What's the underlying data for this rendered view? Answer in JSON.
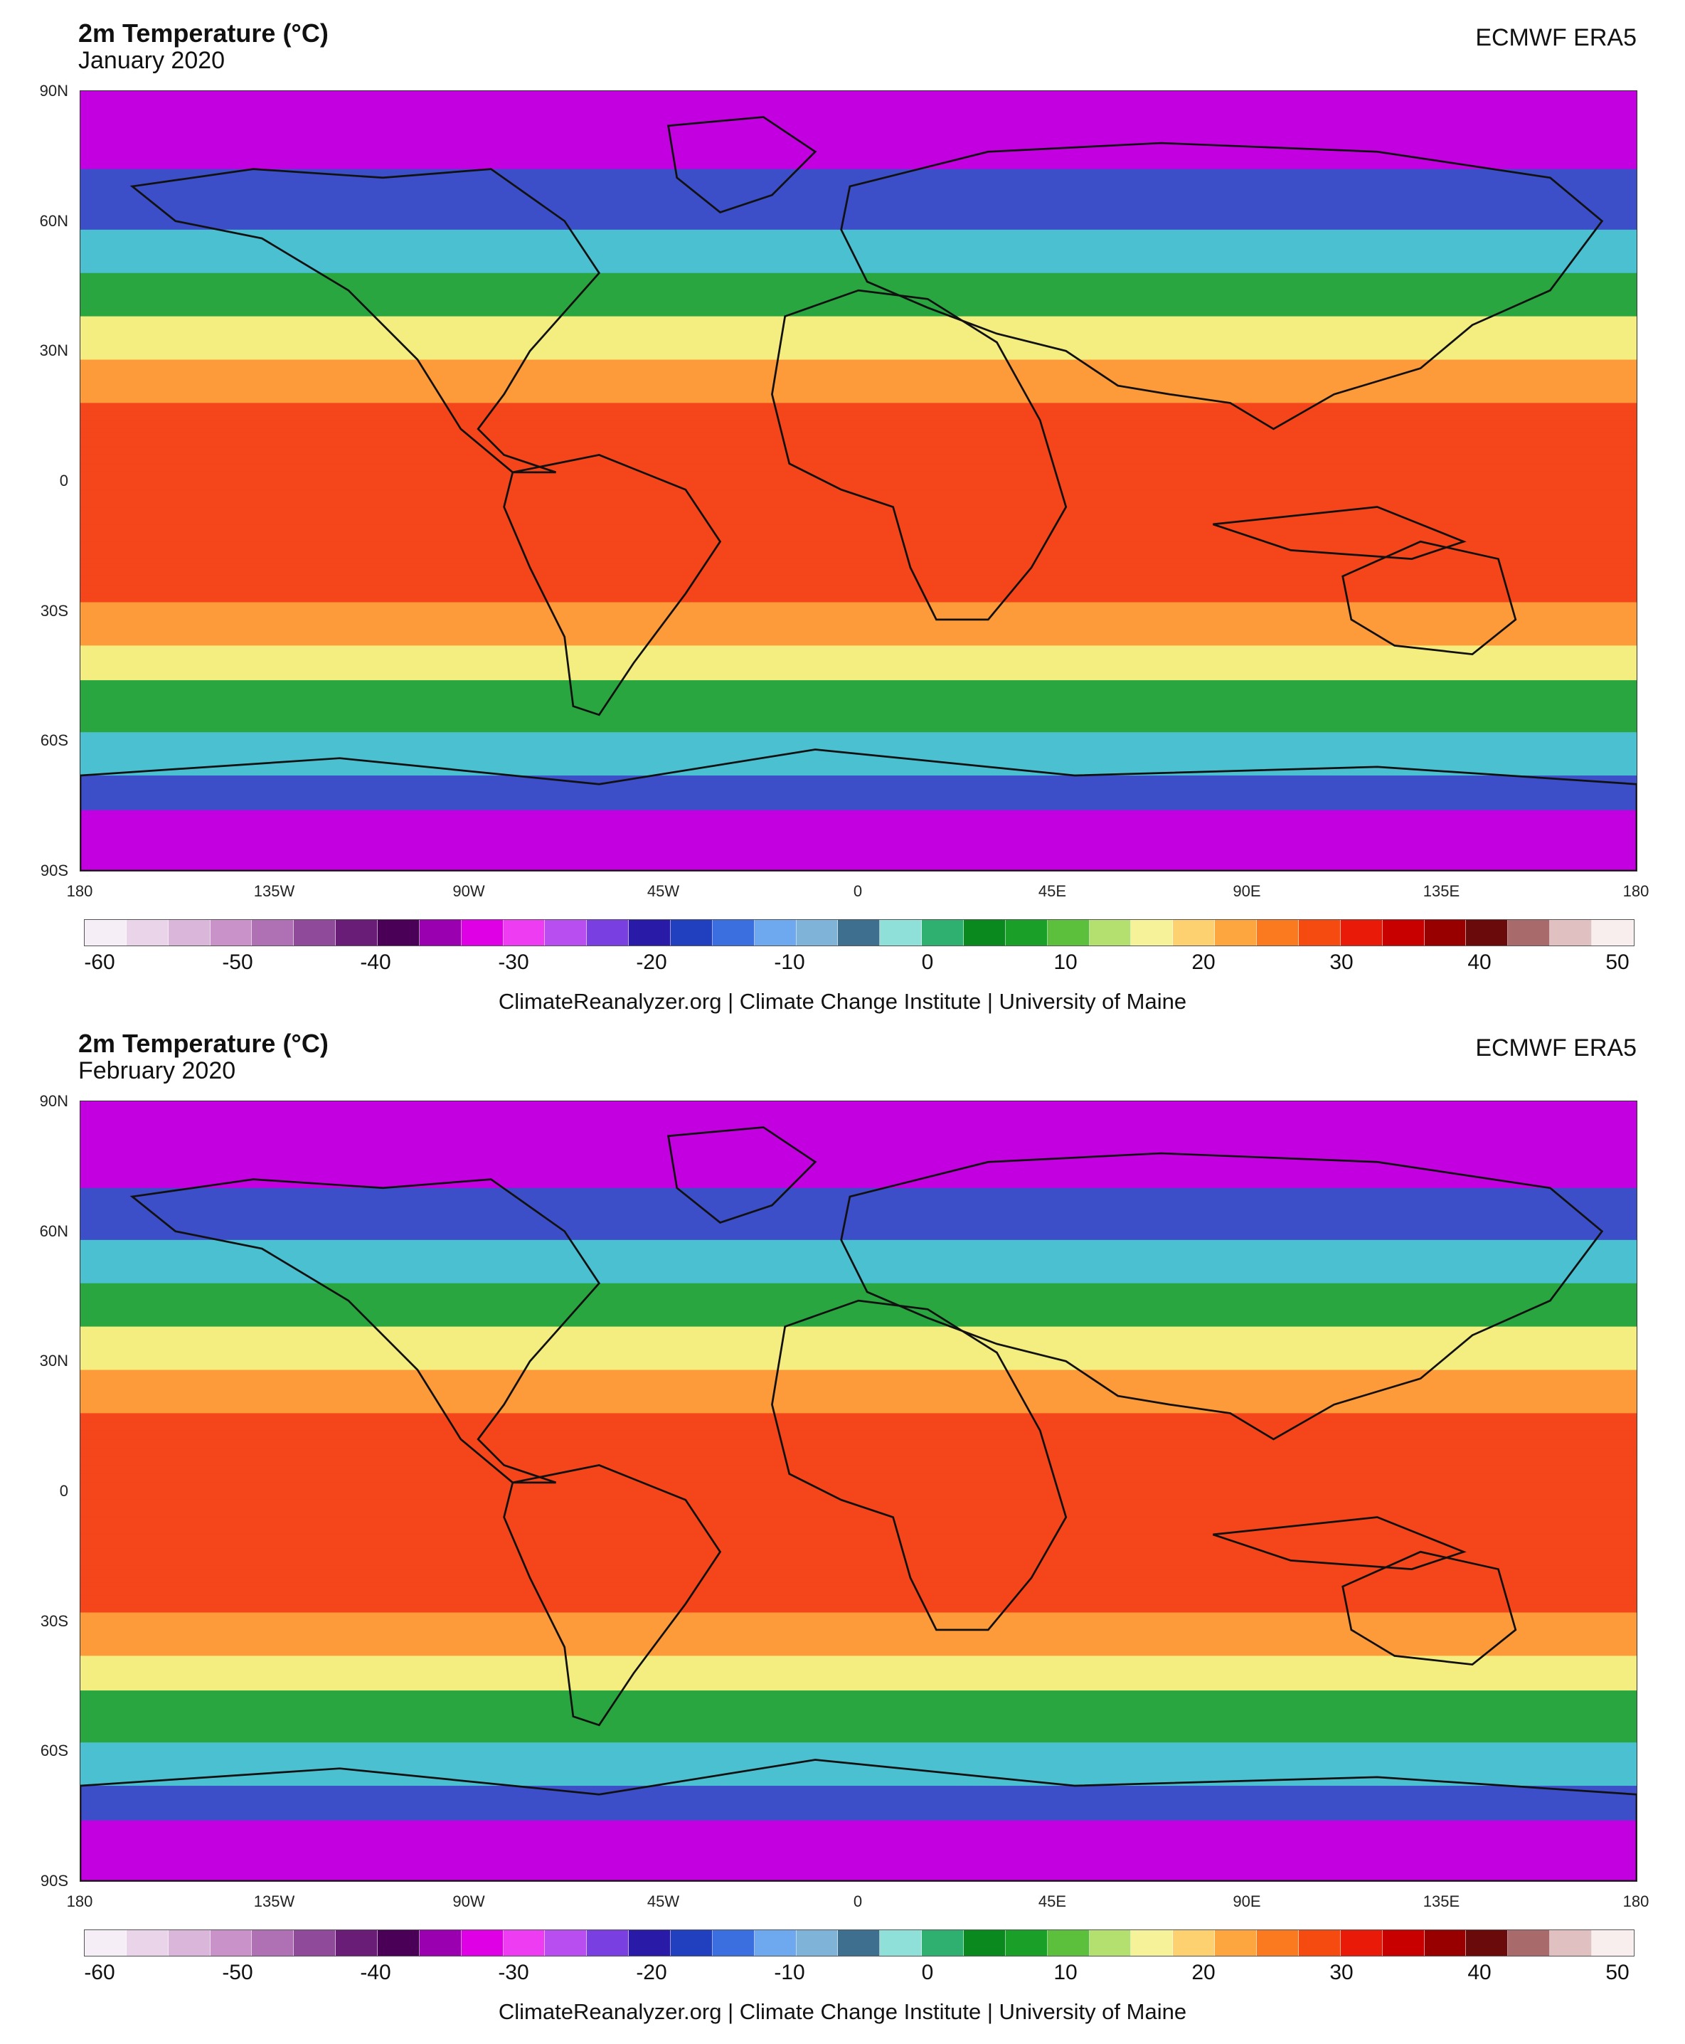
{
  "panels": [
    {
      "title": "2m Temperature (°C)",
      "subtitle": "January 2020",
      "source": "ECMWF ERA5",
      "credit": "ClimateReanalyzer.org | Climate Change Institute | University of Maine"
    },
    {
      "title": "2m Temperature (°C)",
      "subtitle": "February 2020",
      "source": "ECMWF ERA5",
      "credit": "ClimateReanalyzer.org | Climate Change Institute | University of Maine"
    }
  ],
  "lat_ticks": [
    "90N",
    "60N",
    "30N",
    "0",
    "30S",
    "60S",
    "90S"
  ],
  "lon_ticks": [
    "180",
    "135W",
    "90W",
    "45W",
    "0",
    "45E",
    "90E",
    "135E",
    "180"
  ],
  "colorbar": {
    "ticks": [
      "-60",
      "-50",
      "-40",
      "-30",
      "-20",
      "-10",
      "0",
      "10",
      "20",
      "30",
      "40",
      "50"
    ],
    "colors": [
      "#f6eef6",
      "#ead4ea",
      "#dbb6db",
      "#c993c9",
      "#b070b4",
      "#904a9a",
      "#6a1d76",
      "#4b0058",
      "#9a00b0",
      "#e000e6",
      "#ee3cf3",
      "#b84df0",
      "#7a3fe0",
      "#2a1aa8",
      "#2040c0",
      "#3b6fe0",
      "#6ea8ee",
      "#7fb4d8",
      "#3f6f8e",
      "#8ee0d8",
      "#30b070",
      "#0a8a1e",
      "#1aa028",
      "#5cc03c",
      "#b4e070",
      "#f6f29a",
      "#fdd070",
      "#fda640",
      "#fb7a20",
      "#f54a10",
      "#ea1a08",
      "#c80000",
      "#980000",
      "#6a0a0a",
      "#a86a6a",
      "#e0c0c0",
      "#f8eeee"
    ]
  },
  "map_colors": {
    "polar": "#c300e0",
    "subpolar": "#3c4fc8",
    "cool": "#4ac0d0",
    "temperate": "#2aa640",
    "warm": "#f4ee80",
    "subtropical": "#fd9a3a",
    "tropical": "#f5451a",
    "continent_outline": "#111111"
  }
}
